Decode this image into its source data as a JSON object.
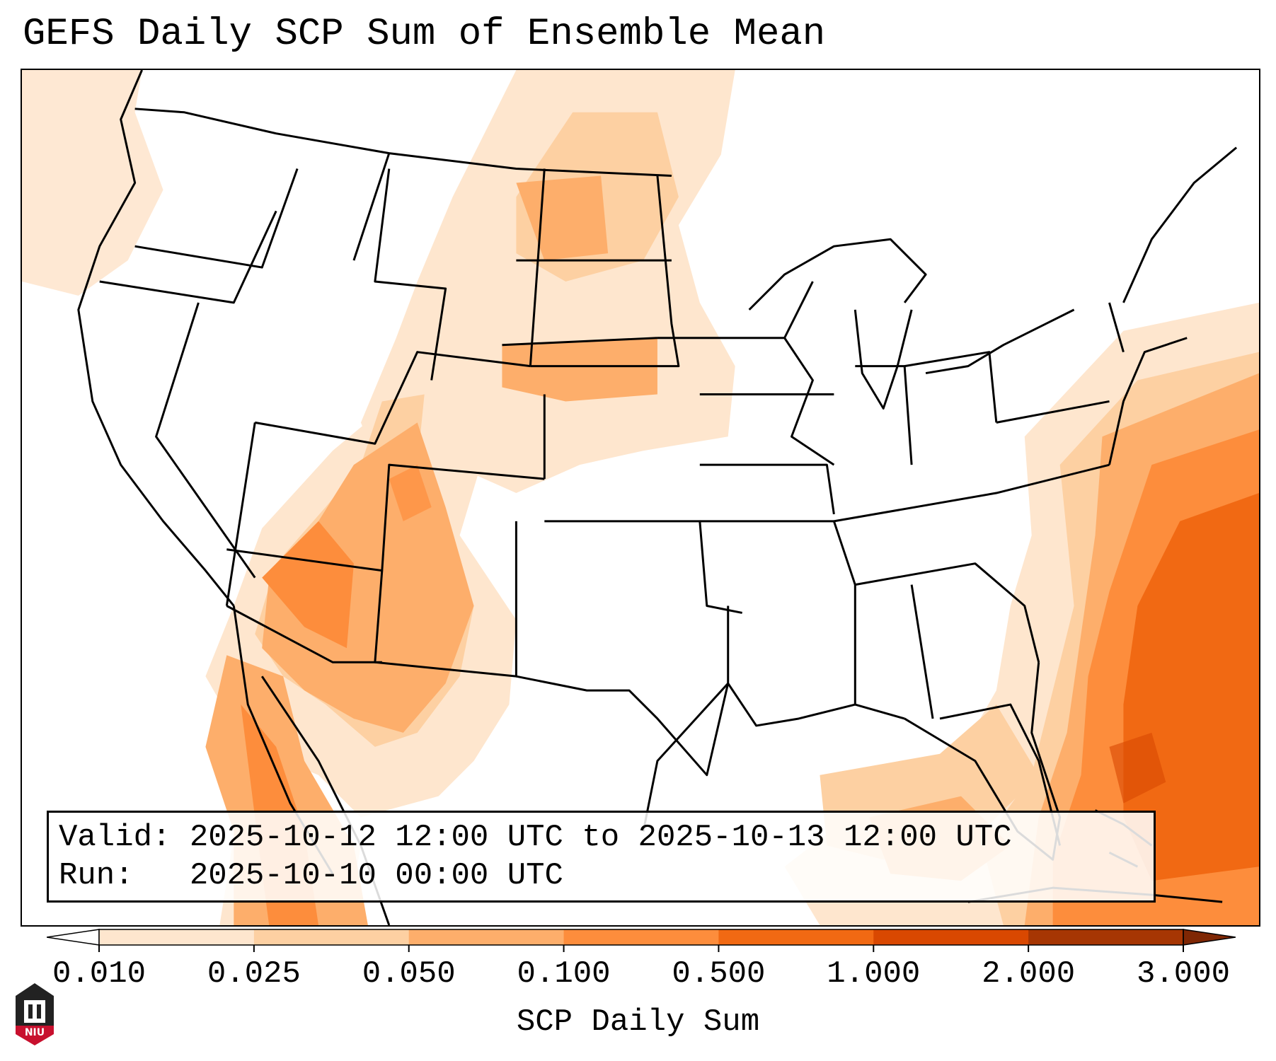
{
  "title": "GEFS Daily SCP Sum of Ensemble Mean",
  "valid_line": {
    "label": "Valid:",
    "value": "2025-10-12 12:00 UTC to 2025-10-13 12:00 UTC"
  },
  "run_line": {
    "label": "Run:",
    "value": "2025-10-10 00:00 UTC"
  },
  "colorbar": {
    "label": "SCP Daily Sum",
    "ticks": [
      "0.010",
      "0.025",
      "0.050",
      "0.100",
      "0.500",
      "1.000",
      "2.000",
      "3.000"
    ],
    "colors": [
      "#fee6ce",
      "#fdd0a2",
      "#fdae6b",
      "#fd8d3c",
      "#f16913",
      "#d94801",
      "#a63603"
    ],
    "under_color": "#ffffff",
    "over_color": "#7f2704"
  },
  "logo": {
    "name": "niu-logo",
    "text": "NIU",
    "color": "#c8102e"
  }
}
